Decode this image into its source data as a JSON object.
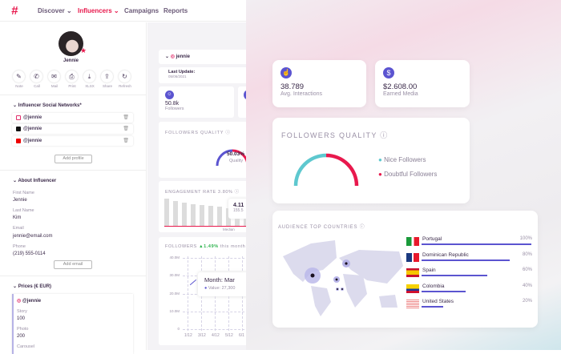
{
  "nav": {
    "items": [
      "Discover",
      "Influencers",
      "Campaigns",
      "Reports"
    ],
    "active": "Influencers"
  },
  "profile": {
    "name": "Jennie",
    "actions": [
      "Note",
      "Call",
      "Mail",
      "Print",
      "XLSX",
      "Share",
      "Refresh"
    ]
  },
  "social": {
    "title": "Influencer Social Networks*",
    "rows": [
      {
        "network": "instagram",
        "handle": "@jennie"
      },
      {
        "network": "tiktok",
        "handle": "@jennie"
      },
      {
        "network": "youtube",
        "handle": "@jennie"
      }
    ],
    "add": "Add profile"
  },
  "about": {
    "title": "About Influencer",
    "fields": [
      {
        "label": "First Name",
        "value": "Jennie"
      },
      {
        "label": "Last Name",
        "value": "Kim"
      },
      {
        "label": "Email",
        "value": "jennie@email.com"
      },
      {
        "label": "Phone",
        "value": "(219) 555-0114"
      }
    ],
    "add": "Add email"
  },
  "prices": {
    "title": "Prices (€ EUR)",
    "handle": "@jennie",
    "items": [
      {
        "label": "Story",
        "value": "100"
      },
      {
        "label": "Photo",
        "value": "200"
      },
      {
        "label": "Carousel",
        "value": ""
      }
    ]
  },
  "mid": {
    "account": "jennie",
    "last_update_label": "Last Update:",
    "last_update": "05/06/2021",
    "followers_value": "50.8k",
    "followers_label": "Followers",
    "fq_title": "FOLLOWERS QUALITY",
    "fq_value": "50.03%",
    "fq_label": "Quality",
    "er_title": "ENGAGEMENT RATE 3.80%",
    "er_tip_value": "4.11",
    "er_tip_sub": "155.5",
    "er_median": "Median",
    "fl_title": "FOLLOWERS",
    "fl_change": "▲1.49%",
    "fl_suffix": "this month",
    "y_ticks": [
      "40.0M",
      "30.0M",
      "20.0M",
      "10.0M",
      "0"
    ],
    "x_ticks": [
      "1/12",
      "3/12",
      "4/12",
      "5/12",
      "6/1"
    ],
    "tooltip_title": "Month: Mar",
    "tooltip_value": "Value: 27,300"
  },
  "cards": {
    "interactions_value": "38.789",
    "interactions_label": "Avg. Interactions",
    "earned_value": "$2.608.00",
    "earned_label": "Earned Media"
  },
  "quality": {
    "title": "FOLLOWERS QUALITY",
    "legend": [
      "Nice Followers",
      "Doubtful Followers"
    ],
    "colors": [
      "#5ec8cf",
      "#e8194d"
    ],
    "nice_fraction": 0.5
  },
  "countries": {
    "title": "AUDIENCE TOP COUNTRIES",
    "rows": [
      {
        "name": "Portugal",
        "pct": "100%",
        "value": 100
      },
      {
        "name": "Dominican Republic",
        "pct": "80%",
        "value": 80
      },
      {
        "name": "Spain",
        "pct": "60%",
        "value": 60
      },
      {
        "name": "Colombia",
        "pct": "40%",
        "value": 40
      },
      {
        "name": "United States",
        "pct": "20%",
        "value": 20
      }
    ]
  }
}
